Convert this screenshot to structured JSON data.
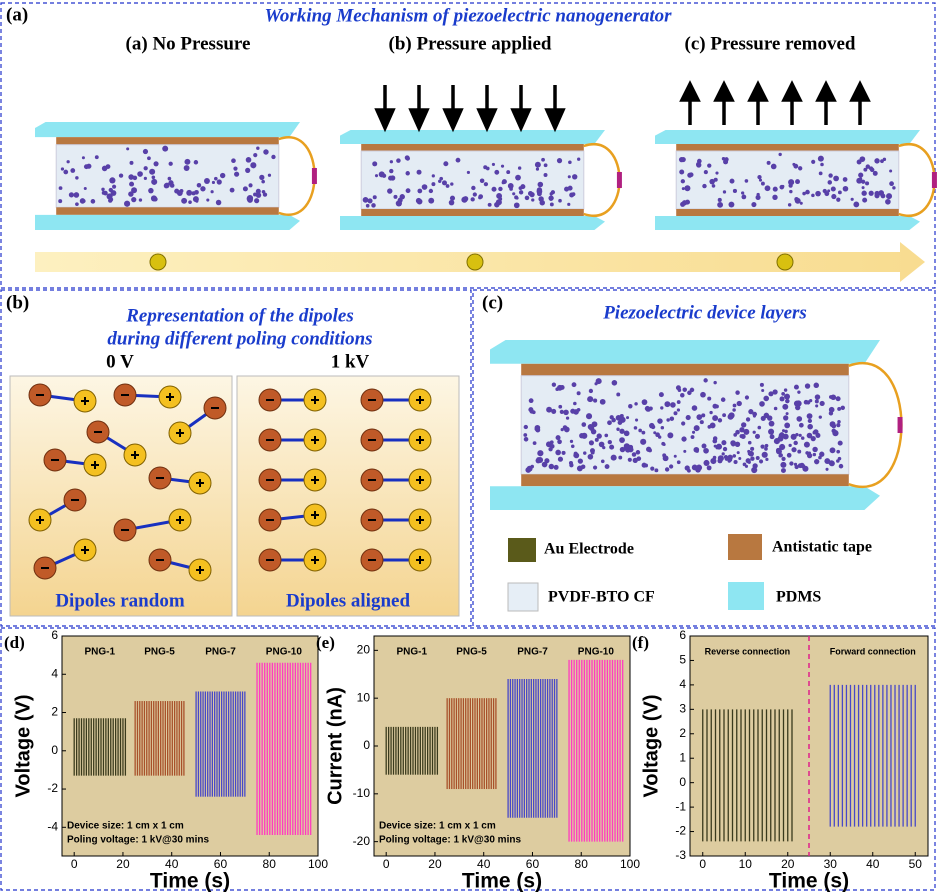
{
  "panel_a": {
    "label": "(a)",
    "title": "Working Mechanism of piezoelectric nanogenerator",
    "subpanels": [
      "(a) No Pressure",
      "(b) Pressure applied",
      "(c) Pressure removed"
    ]
  },
  "panel_b": {
    "label": "(b)",
    "title": "Representation of the dipoles",
    "title_line2": "during different poling conditions",
    "states": [
      {
        "voltage": "0 V",
        "caption": "Dipoles random"
      },
      {
        "voltage": "1 kV",
        "caption": "Dipoles aligned"
      }
    ]
  },
  "panel_c": {
    "label": "(c)",
    "title": "Piezoelectric device layers",
    "legend": [
      "Au Electrode",
      "Antistatic tape",
      "PVDF-BTO CF",
      "PDMS"
    ]
  },
  "chart_data": [
    {
      "type": "signal",
      "label": "(d)",
      "ylabel": "Voltage (V)",
      "xlabel": "Time (s)",
      "xlim": [
        -5,
        100
      ],
      "xticks": [
        0,
        20,
        40,
        60,
        80,
        100
      ],
      "ylim": [
        -5.5,
        6
      ],
      "yticks": [
        -4,
        -2,
        0,
        2,
        4,
        6
      ],
      "annotations": [
        "Device size: 1 cm x 1 cm",
        "Poling voltage: 1 kV@30 mins"
      ],
      "series": [
        {
          "name": "PNG-1",
          "color": "#3a3a1c",
          "x_range": [
            0,
            21
          ],
          "values": [
            -1.3,
            1.7
          ]
        },
        {
          "name": "PNG-5",
          "color": "#a8502a",
          "x_range": [
            25,
            45
          ],
          "values": [
            -1.3,
            2.6
          ]
        },
        {
          "name": "PNG-7",
          "color": "#4848c8",
          "x_range": [
            50,
            70
          ],
          "values": [
            -2.4,
            3.1
          ]
        },
        {
          "name": "PNG-10",
          "color": "#ff3cc0",
          "x_range": [
            75,
            97
          ],
          "values": [
            -4.4,
            4.6
          ]
        }
      ]
    },
    {
      "type": "signal",
      "label": "(e)",
      "ylabel": "Current (nA)",
      "xlabel": "Time (s)",
      "xlim": [
        -5,
        100
      ],
      "xticks": [
        0,
        20,
        40,
        60,
        80,
        100
      ],
      "ylim": [
        -23,
        23
      ],
      "yticks": [
        -20,
        -10,
        0,
        10,
        20
      ],
      "annotations": [
        "Device size: 1 cm x 1 cm",
        "Poling voltage: 1 kV@30 mins"
      ],
      "series": [
        {
          "name": "PNG-1",
          "color": "#3a3a1c",
          "x_range": [
            0,
            21
          ],
          "values": [
            -6,
            4
          ]
        },
        {
          "name": "PNG-5",
          "color": "#a8502a",
          "x_range": [
            25,
            45
          ],
          "values": [
            -9,
            10
          ]
        },
        {
          "name": "PNG-7",
          "color": "#4848c8",
          "x_range": [
            50,
            70
          ],
          "values": [
            -15,
            14
          ]
        },
        {
          "name": "PNG-10",
          "color": "#ff3cc0",
          "x_range": [
            75,
            97
          ],
          "values": [
            -20,
            18
          ]
        }
      ]
    },
    {
      "type": "signal",
      "label": "(f)",
      "ylabel": "Voltage (V)",
      "xlabel": "Time (s)",
      "xlim": [
        -3,
        53
      ],
      "xticks": [
        0,
        10,
        20,
        30,
        40,
        50
      ],
      "ylim": [
        -3,
        6
      ],
      "yticks": [
        -3,
        -2,
        -1,
        0,
        1,
        2,
        3,
        4,
        5,
        6
      ],
      "divider_x": 25,
      "series": [
        {
          "name": "Reverse connection",
          "color": "#3a3a1c",
          "x_range": [
            0,
            21
          ],
          "values": [
            -2.4,
            3
          ]
        },
        {
          "name": "Forward connection",
          "color": "#4848c8",
          "x_range": [
            30,
            50
          ],
          "values": [
            -1.8,
            4
          ]
        }
      ]
    }
  ]
}
